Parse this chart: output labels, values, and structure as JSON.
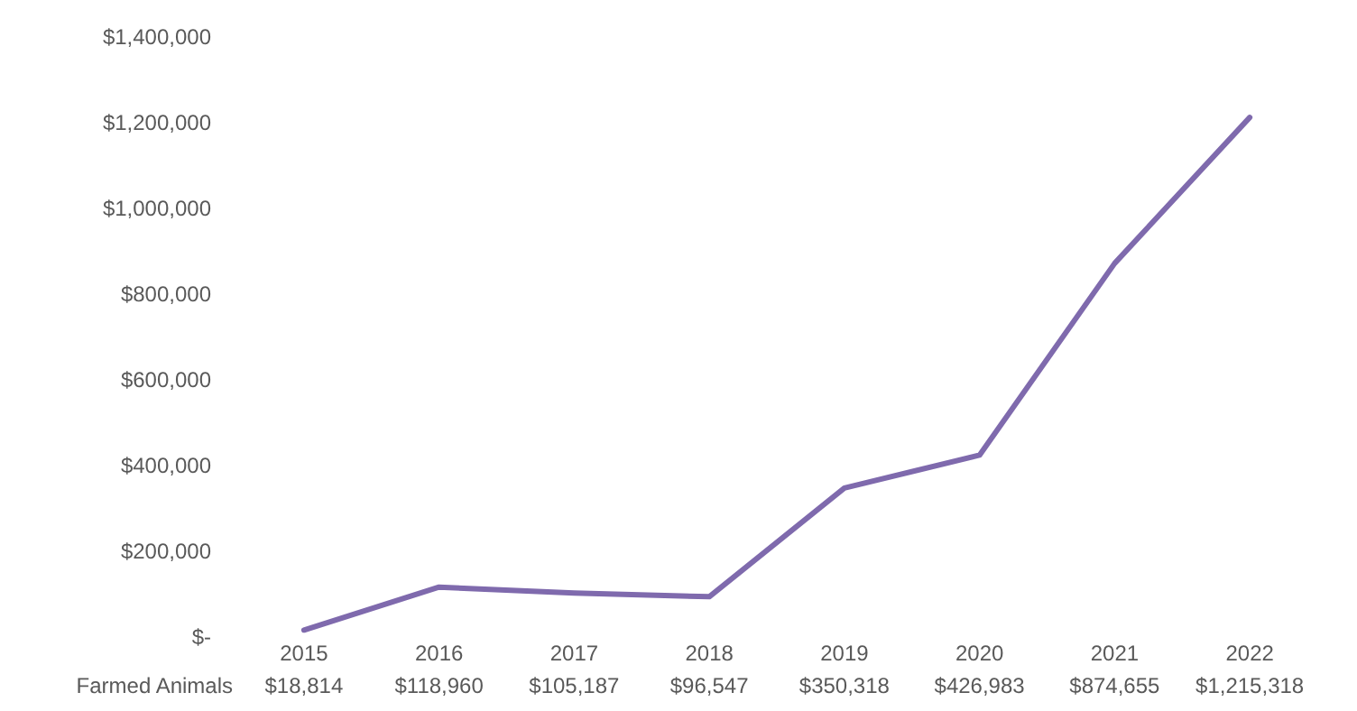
{
  "chart_data": {
    "type": "line",
    "categories": [
      "2015",
      "2016",
      "2017",
      "2018",
      "2019",
      "2020",
      "2021",
      "2022"
    ],
    "series": [
      {
        "name": "Farmed Animals",
        "color": "#7f6aad",
        "values": [
          18814,
          118960,
          105187,
          96547,
          350318,
          426983,
          874655,
          1215318
        ],
        "value_labels": [
          "$18,814",
          "$118,960",
          "$105,187",
          "$96,547",
          "$350,318",
          "$426,983",
          "$874,655",
          "$1,215,318"
        ]
      }
    ],
    "ylim": [
      0,
      1400000
    ],
    "yticks": [
      {
        "value": 0,
        "label": "$-"
      },
      {
        "value": 200000,
        "label": "$200,000"
      },
      {
        "value": 400000,
        "label": "$400,000"
      },
      {
        "value": 600000,
        "label": "$600,000"
      },
      {
        "value": 800000,
        "label": "$800,000"
      },
      {
        "value": 1000000,
        "label": "$1,000,000"
      },
      {
        "value": 1200000,
        "label": "$1,200,000"
      },
      {
        "value": 1400000,
        "label": "$1,400,000"
      }
    ],
    "grid": false,
    "marker": "none",
    "line_style": "solid"
  }
}
